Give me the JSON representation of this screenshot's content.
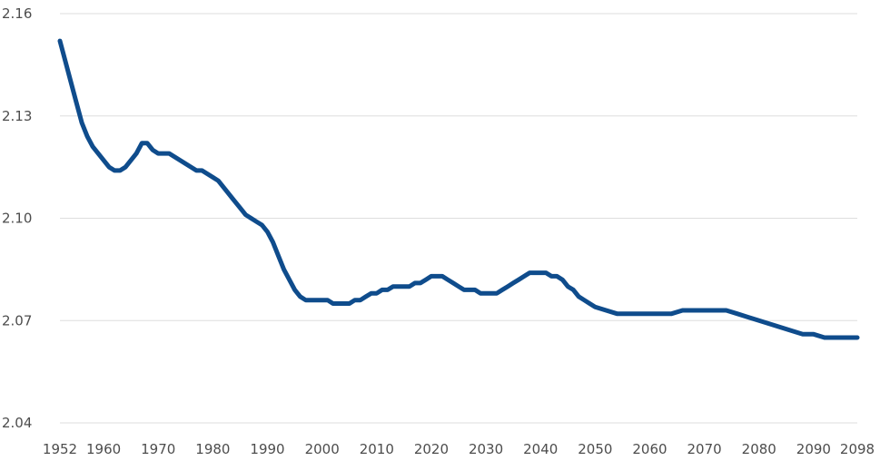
{
  "chart_data": {
    "type": "line",
    "title": "",
    "xlabel": "",
    "ylabel": "",
    "xlim": [
      1952,
      2098
    ],
    "ylim": [
      2.04,
      2.16
    ],
    "grid": true,
    "legend": "none",
    "colors": {
      "series": "#0f4c8c",
      "grid": "#dedede",
      "text": "#4d4d4d"
    },
    "y_ticks": [
      "2.04",
      "2.07",
      "2.10",
      "2.13",
      "2.16"
    ],
    "y_tick_values": [
      2.04,
      2.07,
      2.1,
      2.13,
      2.16
    ],
    "x_ticks": [
      "1952",
      "1960",
      "1970",
      "1980",
      "1990",
      "2000",
      "2010",
      "2020",
      "2030",
      "2040",
      "2050",
      "2060",
      "2070",
      "2080",
      "2090",
      "2098"
    ],
    "x_tick_values": [
      1952,
      1960,
      1970,
      1980,
      1990,
      2000,
      2010,
      2020,
      2030,
      2040,
      2050,
      2060,
      2070,
      2080,
      2090,
      2098
    ],
    "series": [
      {
        "x": [
          1952,
          1953,
          1954,
          1955,
          1956,
          1957,
          1958,
          1959,
          1960,
          1961,
          1962,
          1963,
          1964,
          1965,
          1966,
          1967,
          1968,
          1969,
          1970,
          1971,
          1972,
          1973,
          1974,
          1975,
          1976,
          1977,
          1978,
          1979,
          1980,
          1981,
          1982,
          1983,
          1984,
          1985,
          1986,
          1987,
          1988,
          1989,
          1990,
          1991,
          1992,
          1993,
          1994,
          1995,
          1996,
          1997,
          1998,
          1999,
          2000,
          2001,
          2002,
          2003,
          2004,
          2005,
          2006,
          2007,
          2008,
          2009,
          2010,
          2011,
          2012,
          2013,
          2014,
          2015,
          2016,
          2017,
          2018,
          2019,
          2020,
          2021,
          2022,
          2023,
          2024,
          2025,
          2026,
          2027,
          2028,
          2029,
          2030,
          2031,
          2032,
          2033,
          2034,
          2035,
          2036,
          2037,
          2038,
          2039,
          2040,
          2041,
          2042,
          2043,
          2044,
          2045,
          2046,
          2047,
          2048,
          2049,
          2050,
          2052,
          2054,
          2056,
          2058,
          2060,
          2062,
          2064,
          2066,
          2068,
          2070,
          2072,
          2074,
          2076,
          2078,
          2080,
          2082,
          2084,
          2086,
          2088,
          2090,
          2092,
          2094,
          2096,
          2098
        ],
        "values": [
          2.152,
          2.146,
          2.14,
          2.134,
          2.128,
          2.124,
          2.121,
          2.119,
          2.117,
          2.115,
          2.114,
          2.114,
          2.115,
          2.117,
          2.119,
          2.122,
          2.122,
          2.12,
          2.119,
          2.119,
          2.119,
          2.118,
          2.117,
          2.116,
          2.115,
          2.114,
          2.114,
          2.113,
          2.112,
          2.111,
          2.109,
          2.107,
          2.105,
          2.103,
          2.101,
          2.1,
          2.099,
          2.098,
          2.096,
          2.093,
          2.089,
          2.085,
          2.082,
          2.079,
          2.077,
          2.076,
          2.076,
          2.076,
          2.076,
          2.076,
          2.075,
          2.075,
          2.075,
          2.075,
          2.076,
          2.076,
          2.077,
          2.078,
          2.078,
          2.079,
          2.079,
          2.08,
          2.08,
          2.08,
          2.08,
          2.081,
          2.081,
          2.082,
          2.083,
          2.083,
          2.083,
          2.082,
          2.081,
          2.08,
          2.079,
          2.079,
          2.079,
          2.078,
          2.078,
          2.078,
          2.078,
          2.079,
          2.08,
          2.081,
          2.082,
          2.083,
          2.084,
          2.084,
          2.084,
          2.084,
          2.083,
          2.083,
          2.082,
          2.08,
          2.079,
          2.077,
          2.076,
          2.075,
          2.074,
          2.073,
          2.072,
          2.072,
          2.072,
          2.072,
          2.072,
          2.072,
          2.073,
          2.073,
          2.073,
          2.073,
          2.073,
          2.072,
          2.071,
          2.07,
          2.069,
          2.068,
          2.067,
          2.066,
          2.066,
          2.065,
          2.065,
          2.065,
          2.065
        ]
      }
    ]
  }
}
